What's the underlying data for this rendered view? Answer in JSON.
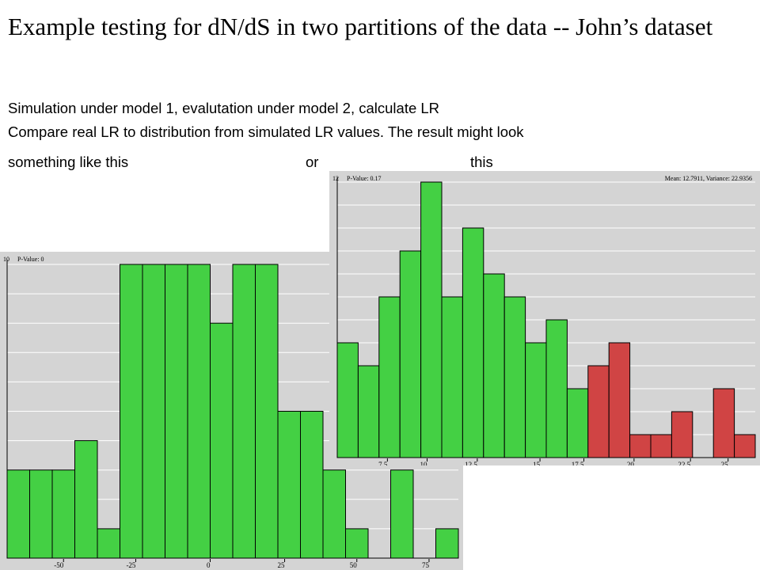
{
  "slide": {
    "title": "Example testing for dN/dS in two partitions of the data -- John’s dataset",
    "line1": "Simulation under model 1, evalutation under model 2, calculate LR",
    "line2": "Compare real LR to distribution from simulated LR values.  The result might look",
    "line3_a": "something like this",
    "line3_b": "or",
    "line3_c": "this"
  },
  "colors": {
    "panel_bg": "#d4d4d4",
    "bar_green": "#44d044",
    "bar_red": "#d04444",
    "grid": "#ffffff",
    "outline": "#000000"
  },
  "chart_data": [
    {
      "type": "bar",
      "ymax_label": "10",
      "pvalue_text": "P-Value: 0",
      "stats_text": "",
      "ylim": [
        0,
        10
      ],
      "grid": true,
      "values": [
        3,
        3,
        3,
        4,
        1,
        10,
        10,
        10,
        10,
        8,
        10,
        10,
        5,
        5,
        3,
        1,
        0,
        3,
        0,
        1
      ],
      "highlight": [],
      "xticks": [
        {
          "label": "-50",
          "bin": 2.5
        },
        {
          "label": "-25",
          "bin": 5.7
        },
        {
          "label": "0",
          "bin": 9
        },
        {
          "label": "25",
          "bin": 12.3
        },
        {
          "label": "50",
          "bin": 15.5
        },
        {
          "label": "75",
          "bin": 18.7
        }
      ]
    },
    {
      "type": "bar",
      "ymax_label": "12",
      "pvalue_text": "P-Value: 0.17",
      "stats_text": "Mean: 12.7911, Variance: 22.9356",
      "ylim": [
        0,
        12
      ],
      "grid": true,
      "values": [
        5,
        4,
        7,
        9,
        12,
        7,
        10,
        8,
        7,
        5,
        6,
        3,
        4,
        5,
        1,
        1,
        2,
        0,
        3,
        1
      ],
      "highlight": [
        12,
        13,
        14,
        15,
        16,
        17,
        18,
        19
      ],
      "xticks": [
        {
          "label": "7.5",
          "bin": 2.4
        },
        {
          "label": "10",
          "bin": 4.3
        },
        {
          "label": "12.5",
          "bin": 6.7
        },
        {
          "label": "15",
          "bin": 9.7
        },
        {
          "label": "17.5",
          "bin": 11.8
        },
        {
          "label": "20",
          "bin": 14.2
        },
        {
          "label": "22.5",
          "bin": 16.9
        },
        {
          "label": "25",
          "bin": 18.7
        }
      ]
    }
  ]
}
